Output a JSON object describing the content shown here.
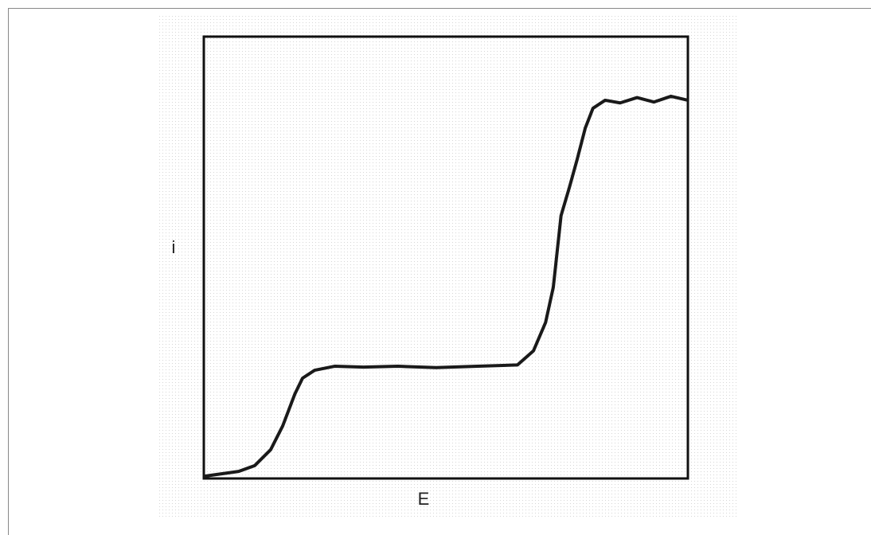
{
  "chart_data": {
    "type": "line",
    "x_label": "E",
    "y_label": "i",
    "x": [
      0,
      0.072,
      0.105,
      0.138,
      0.163,
      0.188,
      0.204,
      0.229,
      0.27,
      0.33,
      0.401,
      0.48,
      0.566,
      0.648,
      0.681,
      0.706,
      0.722,
      0.738,
      0.755,
      0.771,
      0.788,
      0.804,
      0.829,
      0.86,
      0.895,
      0.93,
      0.965,
      1.0
    ],
    "values": [
      0.005,
      0.016,
      0.029,
      0.065,
      0.119,
      0.191,
      0.227,
      0.245,
      0.254,
      0.252,
      0.254,
      0.251,
      0.254,
      0.257,
      0.289,
      0.353,
      0.433,
      0.595,
      0.658,
      0.721,
      0.793,
      0.838,
      0.856,
      0.85,
      0.862,
      0.852,
      0.865,
      0.856
    ],
    "xlim": [
      0,
      1
    ],
    "ylim": [
      0,
      1
    ],
    "color": "#1a1a1a"
  }
}
